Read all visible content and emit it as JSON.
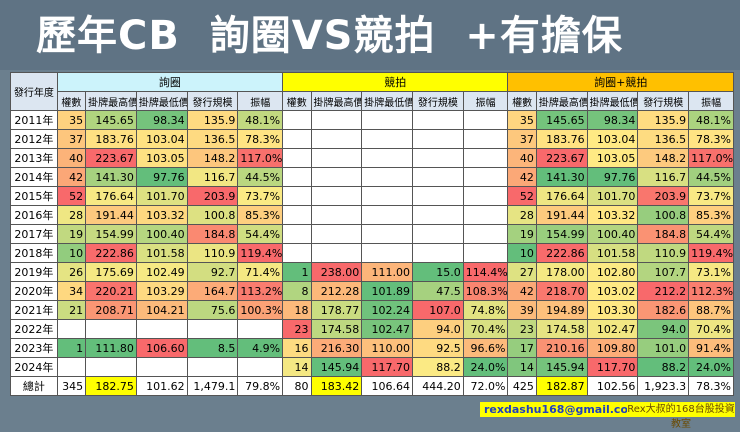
{
  "title": "歷年CB  詢圈VS競拍  +有擔保",
  "year_header": "發行年度",
  "groups": [
    "詢圈",
    "競拍",
    "詢圈+競拍"
  ],
  "group_colors": [
    "#ccf3fb",
    "#ffff00",
    "#ffc000"
  ],
  "sub_headers": [
    "權數",
    "掛牌最高價",
    "掛牌最低價",
    "發行規模",
    "振幅"
  ],
  "color_scale": {
    "low": "#63be7b",
    "mid": "#ffeb84",
    "high": "#f8696b"
  },
  "rows": [
    {
      "year": "2011年",
      "g": [
        [
          "35",
          "145.65",
          "98.34",
          "135.9",
          "48.1%"
        ],
        [
          "",
          "",
          "",
          "",
          ""
        ],
        [
          "35",
          "145.65",
          "98.34",
          "135.9",
          "48.1%"
        ]
      ]
    },
    {
      "year": "2012年",
      "g": [
        [
          "37",
          "183.76",
          "103.04",
          "136.5",
          "78.3%"
        ],
        [
          "",
          "",
          "",
          "",
          ""
        ],
        [
          "37",
          "183.76",
          "103.04",
          "136.5",
          "78.3%"
        ]
      ]
    },
    {
      "year": "2013年",
      "g": [
        [
          "40",
          "223.67",
          "103.05",
          "148.2",
          "117.0%"
        ],
        [
          "",
          "",
          "",
          "",
          ""
        ],
        [
          "40",
          "223.67",
          "103.05",
          "148.2",
          "117.0%"
        ]
      ]
    },
    {
      "year": "2014年",
      "g": [
        [
          "42",
          "141.30",
          "97.76",
          "116.7",
          "44.5%"
        ],
        [
          "",
          "",
          "",
          "",
          ""
        ],
        [
          "42",
          "141.30",
          "97.76",
          "116.7",
          "44.5%"
        ]
      ]
    },
    {
      "year": "2015年",
      "g": [
        [
          "52",
          "176.64",
          "101.70",
          "203.9",
          "73.7%"
        ],
        [
          "",
          "",
          "",
          "",
          ""
        ],
        [
          "52",
          "176.64",
          "101.70",
          "203.9",
          "73.7%"
        ]
      ]
    },
    {
      "year": "2016年",
      "g": [
        [
          "28",
          "191.44",
          "103.32",
          "100.8",
          "85.3%"
        ],
        [
          "",
          "",
          "",
          "",
          ""
        ],
        [
          "28",
          "191.44",
          "103.32",
          "100.8",
          "85.3%"
        ]
      ]
    },
    {
      "year": "2017年",
      "g": [
        [
          "19",
          "154.99",
          "100.40",
          "184.8",
          "54.4%"
        ],
        [
          "",
          "",
          "",
          "",
          ""
        ],
        [
          "19",
          "154.99",
          "100.40",
          "184.8",
          "54.4%"
        ]
      ]
    },
    {
      "year": "2018年",
      "g": [
        [
          "10",
          "222.86",
          "101.58",
          "110.9",
          "119.4%"
        ],
        [
          "",
          "",
          "",
          "",
          ""
        ],
        [
          "10",
          "222.86",
          "101.58",
          "110.9",
          "119.4%"
        ]
      ]
    },
    {
      "year": "2019年",
      "g": [
        [
          "26",
          "175.69",
          "102.49",
          "92.7",
          "71.4%"
        ],
        [
          "1",
          "238.00",
          "111.00",
          "15.0",
          "114.4%"
        ],
        [
          "27",
          "178.00",
          "102.80",
          "107.7",
          "73.1%"
        ]
      ]
    },
    {
      "year": "2020年",
      "g": [
        [
          "34",
          "220.21",
          "103.29",
          "164.7",
          "113.2%"
        ],
        [
          "8",
          "212.28",
          "101.89",
          "47.5",
          "108.3%"
        ],
        [
          "42",
          "218.70",
          "103.02",
          "212.2",
          "112.3%"
        ]
      ]
    },
    {
      "year": "2021年",
      "g": [
        [
          "21",
          "208.71",
          "104.21",
          "75.6",
          "100.3%"
        ],
        [
          "18",
          "178.77",
          "102.24",
          "107.0",
          "74.8%"
        ],
        [
          "39",
          "194.89",
          "103.30",
          "182.6",
          "88.7%"
        ]
      ]
    },
    {
      "year": "2022年",
      "g": [
        [
          "",
          "",
          "",
          "",
          ""
        ],
        [
          "23",
          "174.58",
          "102.47",
          "94.0",
          "70.4%"
        ],
        [
          "23",
          "174.58",
          "102.47",
          "94.0",
          "70.4%"
        ]
      ]
    },
    {
      "year": "2023年",
      "g": [
        [
          "1",
          "111.80",
          "106.60",
          "8.5",
          "4.9%"
        ],
        [
          "16",
          "216.30",
          "110.00",
          "92.5",
          "96.6%"
        ],
        [
          "17",
          "210.16",
          "109.80",
          "101.0",
          "91.4%"
        ]
      ]
    },
    {
      "year": "2024年",
      "g": [
        [
          "",
          "",
          "",
          "",
          ""
        ],
        [
          "14",
          "145.94",
          "117.70",
          "88.2",
          "24.0%"
        ],
        [
          "14",
          "145.94",
          "117.70",
          "88.2",
          "24.0%"
        ]
      ]
    }
  ],
  "total": {
    "label": "總計",
    "g": [
      [
        "345",
        "182.75",
        "101.62",
        "1,479.1",
        "79.8%"
      ],
      [
        "80",
        "183.42",
        "106.64",
        "444.20",
        "72.0%"
      ],
      [
        "425",
        "182.87",
        "102.56",
        "1,923.3",
        "78.3%"
      ]
    ]
  },
  "footer": {
    "email": "rexdashu168@gmail.com",
    "brand": "Rex大叔的168台股投資教室"
  }
}
